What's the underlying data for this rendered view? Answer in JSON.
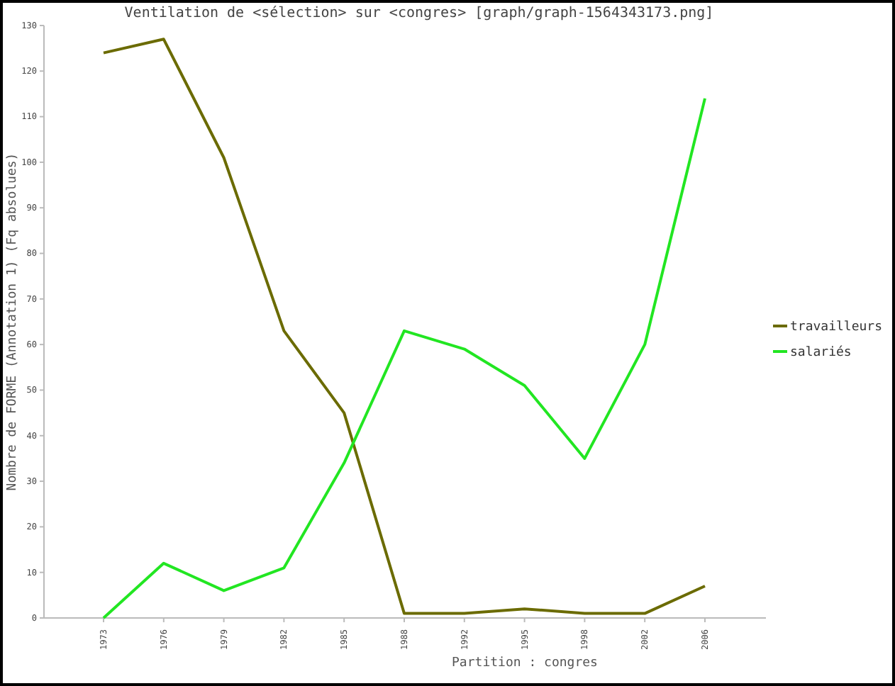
{
  "chart_data": {
    "type": "line",
    "title": "Ventilation de <sélection> sur <congres> [graph/graph-1564343173.png]",
    "xlabel": "Partition : congres",
    "ylabel": "Nombre de FORME (Annotation 1) (Fq absolues)",
    "categories": [
      "1973",
      "1976",
      "1979",
      "1982",
      "1985",
      "1988",
      "1992",
      "1995",
      "1998",
      "2002",
      "2006"
    ],
    "series": [
      {
        "name": "travailleurs",
        "color": "#6b6b00",
        "values": [
          124,
          127,
          101,
          63,
          45,
          1,
          1,
          2,
          1,
          1,
          7
        ]
      },
      {
        "name": "salariés",
        "color": "#22e622",
        "values": [
          0,
          12,
          6,
          11,
          34,
          63,
          59,
          51,
          35,
          60,
          114
        ]
      }
    ],
    "ylim": [
      0,
      130
    ],
    "yticks": [
      0,
      10,
      20,
      30,
      40,
      50,
      60,
      70,
      80,
      90,
      100,
      110,
      120,
      130
    ],
    "grid": false,
    "legend": "right",
    "marker": "none",
    "line_style": "solid"
  }
}
